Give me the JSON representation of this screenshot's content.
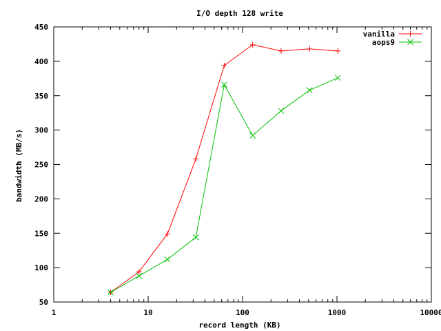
{
  "chart_data": {
    "type": "line",
    "title": "I/O depth 128 write",
    "xlabel": "record length (KB)",
    "ylabel": "bandwidth (MB/s)",
    "x_scale": "log",
    "xlim": [
      1,
      10000
    ],
    "ylim": [
      50,
      450
    ],
    "x_ticks": [
      1,
      10,
      100,
      1000,
      10000
    ],
    "x_tick_labels": [
      "1",
      "10",
      "100",
      "1000",
      "10000"
    ],
    "y_ticks": [
      50,
      100,
      150,
      200,
      250,
      300,
      350,
      400,
      450
    ],
    "y_tick_labels": [
      "50",
      "100",
      "150",
      "200",
      "250",
      "300",
      "350",
      "400",
      "450"
    ],
    "grid": false,
    "legend_position": "top-right",
    "x": [
      4,
      8,
      16,
      32,
      64,
      128,
      256,
      512,
      1024
    ],
    "series": [
      {
        "name": "vanilla",
        "color": "#ff0000",
        "marker": "plus",
        "values": [
          64,
          94,
          149,
          258,
          394,
          424,
          415,
          418,
          415
        ]
      },
      {
        "name": "aops9",
        "color": "#00c000",
        "marker": "cross",
        "values": [
          64,
          88,
          112,
          144,
          366,
          292,
          328,
          358,
          376
        ]
      }
    ]
  }
}
